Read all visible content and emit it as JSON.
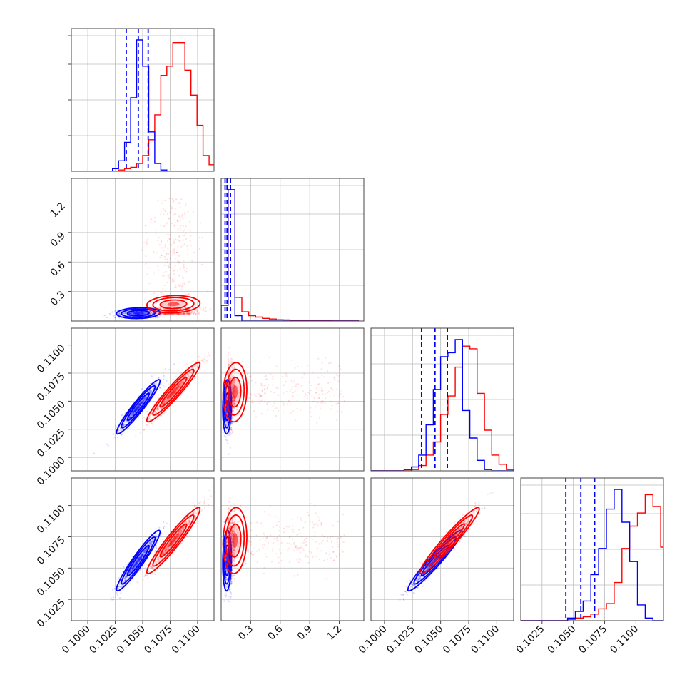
{
  "chart_data": {
    "type": "corner",
    "grid": true,
    "colors": {
      "blue": "#0000ff",
      "red": "#ff0000"
    },
    "series": [
      {
        "color": "#0000ff",
        "means": [
          0.1046,
          0.06,
          0.1045,
          0.1056
        ],
        "sigmas": [
          0.0009,
          0.03,
          0.0011,
          0.0011
        ],
        "corr": [
          [
            0,
            1,
            0.4
          ],
          [
            0,
            2,
            0.95
          ],
          [
            0,
            3,
            0.95
          ],
          [
            2,
            3,
            0.96
          ],
          [
            1,
            2,
            -0.3
          ],
          [
            1,
            3,
            -0.3
          ]
        ]
      },
      {
        "color": "#ff0000",
        "means": [
          0.1078,
          0.18,
          0.1058,
          0.1072
        ],
        "sigmas": [
          0.0011,
          0.22,
          0.0012,
          0.0012
        ],
        "corr": [
          [
            0,
            1,
            0.2
          ],
          [
            0,
            2,
            0.95
          ],
          [
            0,
            3,
            0.95
          ],
          [
            2,
            3,
            0.96
          ],
          [
            1,
            2,
            -0.2
          ],
          [
            1,
            3,
            -0.2
          ]
        ]
      }
    ],
    "quantile_lines": [
      [
        0.1035,
        0.1046,
        0.1055
      ],
      [
        0.04,
        0.06,
        0.095
      ],
      [
        0.1033,
        0.1045,
        0.1056
      ],
      [
        0.1044,
        0.1056,
        0.1067
      ]
    ],
    "histograms": [
      {
        "edges_start": 0.0995,
        "bin": 0.00055,
        "blue": [
          0,
          0,
          0,
          0,
          0,
          0.02,
          0.08,
          0.22,
          0.56,
          1.0,
          0.8,
          0.3,
          0.06,
          0.01,
          0,
          0,
          0,
          0,
          0,
          0,
          0,
          0,
          0,
          0,
          0,
          0,
          0,
          0,
          0,
          0
        ],
        "red": [
          0,
          0,
          0,
          0,
          0,
          0,
          0.01,
          0.02,
          0.03,
          0.06,
          0.12,
          0.24,
          0.43,
          0.73,
          0.8,
          0.98,
          0.98,
          0.77,
          0.58,
          0.35,
          0.12,
          0.05,
          0.02,
          0.01,
          0,
          0,
          0,
          0,
          0,
          0
        ]
      },
      {
        "edges_start": 0.0,
        "bin": 0.07,
        "blue": [
          0.12,
          1.0,
          0.04,
          0,
          0,
          0,
          0,
          0,
          0,
          0,
          0,
          0,
          0,
          0,
          0,
          0,
          0,
          0,
          0,
          0
        ],
        "red": [
          0.12,
          1.0,
          0.18,
          0.07,
          0.04,
          0.03,
          0.02,
          0.015,
          0.01,
          0.008,
          0.006,
          0.004,
          0.003,
          0.003,
          0.002,
          0.002,
          0.001,
          0.001,
          0.001,
          0.001
        ]
      },
      {
        "edges_start": 0.0985,
        "bin": 0.00065,
        "blue": [
          0,
          0,
          0,
          0,
          0,
          0.01,
          0.03,
          0.12,
          0.35,
          0.62,
          0.87,
          0.9,
          1.0,
          0.46,
          0.25,
          0.08,
          0.01,
          0,
          0,
          0,
          0,
          0,
          0
        ],
        "red": [
          0,
          0,
          0,
          0,
          0,
          0,
          0.01,
          0.04,
          0.12,
          0.22,
          0.43,
          0.57,
          0.79,
          0.95,
          0.93,
          0.59,
          0.31,
          0.12,
          0.05,
          0.01,
          0,
          0,
          0
        ]
      },
      {
        "edges_start": 0.1002,
        "bin": 0.00062,
        "blue": [
          0,
          0,
          0,
          0,
          0,
          0,
          0,
          0.02,
          0.07,
          0.15,
          0.35,
          0.55,
          0.85,
          1.0,
          0.75,
          0.45,
          0.12,
          0.02,
          0,
          0,
          0,
          0,
          0,
          0,
          0,
          0,
          0,
          0
        ],
        "red": [
          0,
          0,
          0,
          0,
          0,
          0,
          0,
          0.01,
          0.02,
          0.03,
          0.05,
          0.09,
          0.13,
          0.29,
          0.55,
          0.72,
          0.82,
          0.96,
          0.87,
          0.56,
          0.31,
          0.11,
          0.05,
          0.02,
          0.01,
          0,
          0,
          0
        ]
      }
    ],
    "axes": [
      {
        "range": [
          0.0985,
          0.1115
        ],
        "ticks": [
          0.1,
          0.1025,
          0.105,
          0.1075,
          0.11
        ],
        "tick_labels": [
          "0.1000",
          "0.1025",
          "0.1050",
          "0.1075",
          "0.1100"
        ]
      },
      {
        "range": [
          0.0,
          1.45
        ],
        "ticks": [
          0.3,
          0.6,
          0.9,
          1.2
        ],
        "tick_labels": [
          "0.3",
          "0.6",
          "0.9",
          "1.2"
        ]
      },
      {
        "range": [
          0.0988,
          0.1115
        ],
        "ticks": [
          0.1,
          0.1025,
          0.105,
          0.1075,
          0.11
        ],
        "tick_labels": [
          "0.1000",
          "0.1025",
          "0.1050",
          "0.1075",
          "0.1100"
        ]
      },
      {
        "range": [
          0.1008,
          0.1122
        ],
        "ticks": [
          0.1025,
          0.105,
          0.1075,
          0.11
        ],
        "tick_labels": [
          "0.1025",
          "0.1050",
          "0.1075",
          "0.1100"
        ]
      }
    ]
  }
}
